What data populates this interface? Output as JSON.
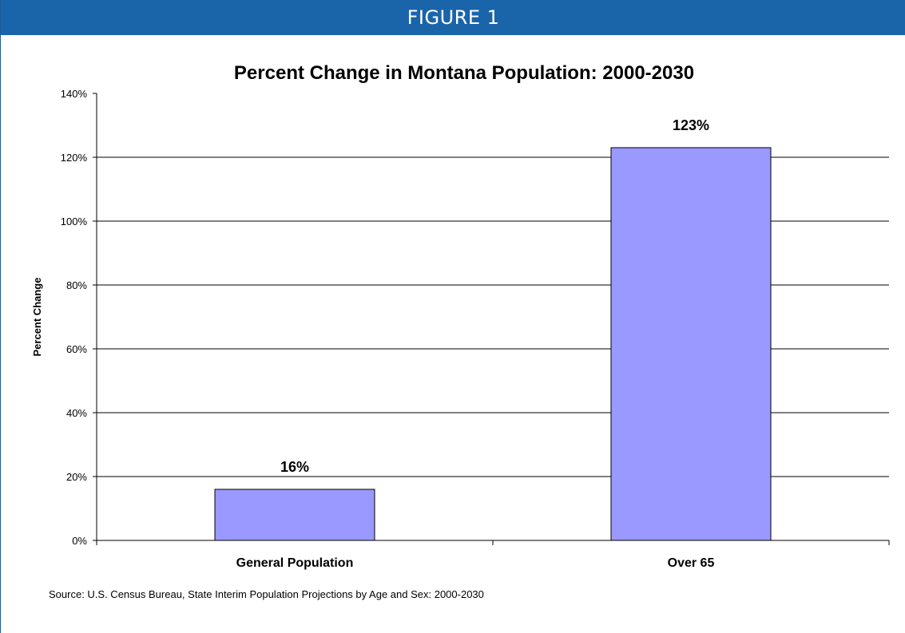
{
  "figure_label": "FIGURE 1",
  "source_note": "Source:  U.S. Census Bureau, State Interim Population Projections by Age and Sex: 2000-2030",
  "colors": {
    "banner": "#1a64aa",
    "bar_fill": "#9999ff",
    "bar_stroke": "#000000",
    "gridline": "#000000"
  },
  "chart_data": {
    "type": "bar",
    "title": "Percent Change in Montana Population: 2000-2030",
    "xlabel": "",
    "ylabel": "Percent Change",
    "categories": [
      "General Population",
      "Over 65"
    ],
    "values": [
      16,
      123
    ],
    "data_labels": [
      "16%",
      "123%"
    ],
    "ylim": [
      0,
      140
    ],
    "yticks": [
      0,
      20,
      40,
      60,
      80,
      100,
      120,
      140
    ],
    "ytick_labels": [
      "0%",
      "20%",
      "40%",
      "60%",
      "80%",
      "100%",
      "120%",
      "140%"
    ],
    "grid": true,
    "legend": "none"
  }
}
